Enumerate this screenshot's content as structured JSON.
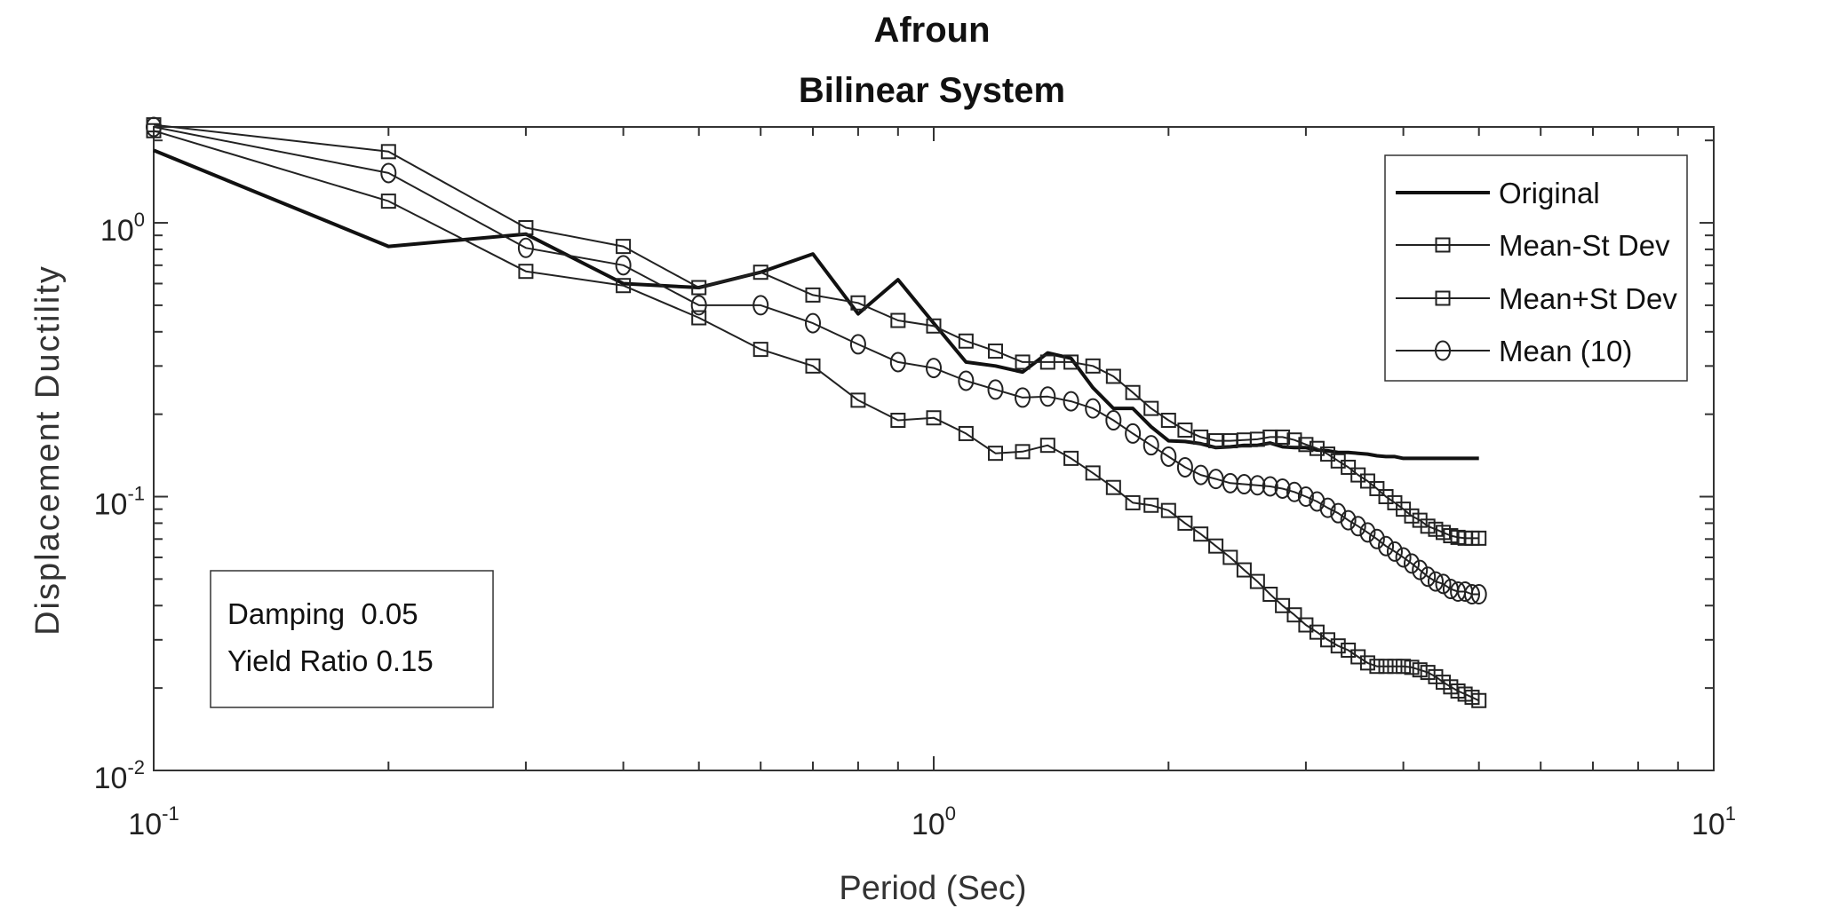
{
  "chart_data": {
    "type": "line",
    "title": "Afroun",
    "subtitle": "Bilinear System",
    "xlabel": "Period (Sec)",
    "ylabel": "Displacement Ductility",
    "xscale": "log",
    "yscale": "log",
    "xlim": [
      0.1,
      10
    ],
    "ylim": [
      0.01,
      2.24
    ],
    "x_ticks": [
      {
        "value": 0.1,
        "base": "10",
        "exp": "-1"
      },
      {
        "value": 1,
        "base": "10",
        "exp": "0"
      },
      {
        "value": 10,
        "base": "10",
        "exp": "1"
      }
    ],
    "y_ticks": [
      {
        "value": 0.01,
        "base": "10",
        "exp": "-2"
      },
      {
        "value": 0.1,
        "base": "10",
        "exp": "-1"
      },
      {
        "value": 1,
        "base": "10",
        "exp": "0"
      }
    ],
    "grid": false,
    "legend_position": "top-right",
    "x": [
      0.1,
      0.2,
      0.3,
      0.4,
      0.5,
      0.6,
      0.7,
      0.8,
      0.9,
      1.0,
      1.1,
      1.2,
      1.3,
      1.4,
      1.5,
      1.6,
      1.7,
      1.8,
      1.9,
      2.0,
      2.1,
      2.2,
      2.3,
      2.4,
      2.5,
      2.6,
      2.7,
      2.8,
      2.9,
      3.0,
      3.1,
      3.2,
      3.3,
      3.4,
      3.5,
      3.6,
      3.7,
      3.8,
      3.9,
      4.0,
      4.1,
      4.2,
      4.3,
      4.4,
      4.5,
      4.6,
      4.7,
      4.8,
      4.9,
      5.0
    ],
    "series": [
      {
        "name": "Original",
        "marker": "none",
        "color": "#111111",
        "values": [
          1.84,
          0.82,
          0.91,
          0.6,
          0.58,
          0.66,
          0.77,
          0.465,
          0.62,
          0.43,
          0.31,
          0.3,
          0.285,
          0.335,
          0.32,
          0.25,
          0.21,
          0.21,
          0.18,
          0.16,
          0.159,
          0.156,
          0.151,
          0.152,
          0.154,
          0.154,
          0.157,
          0.152,
          0.151,
          0.151,
          0.148,
          0.147,
          0.145,
          0.145,
          0.144,
          0.143,
          0.141,
          0.14,
          0.14,
          0.138,
          0.138,
          0.138,
          0.138,
          0.138,
          0.138,
          0.138,
          0.138,
          0.138,
          0.138,
          0.138
        ]
      },
      {
        "name": "Mean-St Dev",
        "marker": "square",
        "color": "#222222",
        "values": [
          2.17,
          1.2,
          0.665,
          0.59,
          0.45,
          0.345,
          0.3,
          0.225,
          0.19,
          0.194,
          0.17,
          0.144,
          0.146,
          0.154,
          0.138,
          0.122,
          0.108,
          0.095,
          0.093,
          0.089,
          0.08,
          0.073,
          0.066,
          0.06,
          0.054,
          0.049,
          0.044,
          0.04,
          0.037,
          0.034,
          0.032,
          0.03,
          0.0285,
          0.0275,
          0.026,
          0.0247,
          0.024,
          0.024,
          0.024,
          0.024,
          0.0238,
          0.0233,
          0.0228,
          0.022,
          0.021,
          0.0202,
          0.0195,
          0.019,
          0.0185,
          0.018
        ]
      },
      {
        "name": "Mean+St Dev",
        "marker": "square",
        "color": "#222222",
        "values": [
          2.28,
          1.82,
          0.96,
          0.82,
          0.58,
          0.66,
          0.545,
          0.51,
          0.44,
          0.42,
          0.37,
          0.34,
          0.31,
          0.31,
          0.31,
          0.3,
          0.275,
          0.24,
          0.21,
          0.19,
          0.175,
          0.165,
          0.16,
          0.16,
          0.161,
          0.162,
          0.165,
          0.165,
          0.161,
          0.155,
          0.15,
          0.143,
          0.135,
          0.128,
          0.12,
          0.114,
          0.107,
          0.1,
          0.095,
          0.09,
          0.085,
          0.082,
          0.078,
          0.076,
          0.074,
          0.072,
          0.071,
          0.0705,
          0.0705,
          0.0705
        ]
      },
      {
        "name": "Mean (10)",
        "marker": "circle",
        "color": "#222222",
        "values": [
          2.24,
          1.52,
          0.81,
          0.7,
          0.5,
          0.5,
          0.43,
          0.36,
          0.31,
          0.295,
          0.265,
          0.246,
          0.23,
          0.232,
          0.223,
          0.21,
          0.19,
          0.17,
          0.154,
          0.14,
          0.128,
          0.12,
          0.116,
          0.112,
          0.111,
          0.11,
          0.109,
          0.107,
          0.104,
          0.1,
          0.096,
          0.091,
          0.087,
          0.082,
          0.078,
          0.074,
          0.07,
          0.066,
          0.063,
          0.06,
          0.057,
          0.054,
          0.051,
          0.049,
          0.048,
          0.046,
          0.045,
          0.045,
          0.044,
          0.044
        ]
      }
    ],
    "annotation": [
      "Damping  0.05",
      "Yield Ratio 0.15"
    ]
  }
}
